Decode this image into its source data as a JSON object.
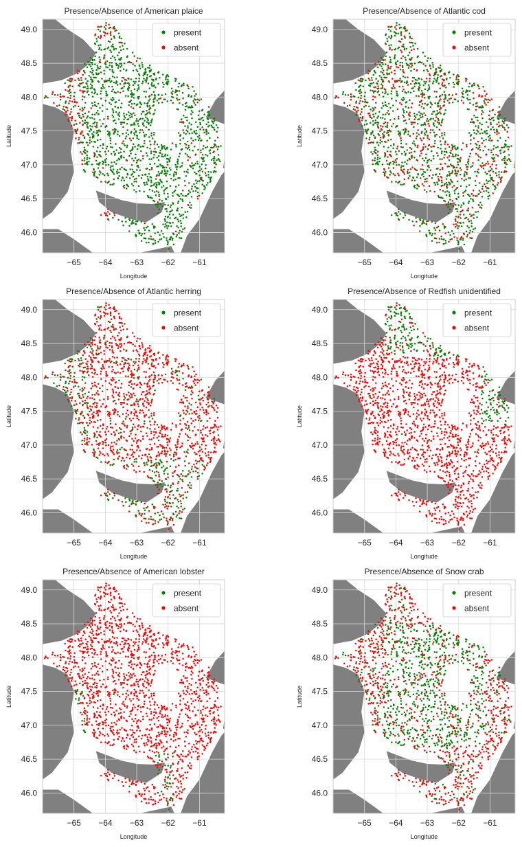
{
  "legend_labels": {
    "present": "present",
    "absent": "absent"
  },
  "colors": {
    "present": "#008000",
    "absent": "#ff0000",
    "land": "#808080",
    "water": "#ffffff",
    "grid": "#d9d9d9",
    "frame": "#cccccc"
  },
  "chart_data": [
    {
      "type": "scatter",
      "title": "Presence/Absence of American plaice",
      "xlabel": "Longitude",
      "ylabel": "Latitude",
      "xlim": [
        -66.0,
        -60.2
      ],
      "ylim": [
        45.7,
        49.15
      ],
      "xticks": [
        -65,
        -64,
        -63,
        -62,
        -61
      ],
      "yticks": [
        46.0,
        46.5,
        47.0,
        47.5,
        48.0,
        48.5,
        49.0
      ],
      "grid": true,
      "legend_position": "top-right",
      "series": [
        {
          "name": "present",
          "color": "#008000",
          "share": 0.8,
          "edge_absent": true
        },
        {
          "name": "absent",
          "color": "#ff0000",
          "share": 0.2
        }
      ]
    },
    {
      "type": "scatter",
      "title": "Presence/Absence of Atlantic cod",
      "xlabel": "Longitude",
      "ylabel": "Latitude",
      "xlim": [
        -66.0,
        -60.2
      ],
      "ylim": [
        45.7,
        49.15
      ],
      "xticks": [
        -65,
        -64,
        -63,
        -62,
        -61
      ],
      "yticks": [
        46.0,
        46.5,
        47.0,
        47.5,
        48.0,
        48.5,
        49.0
      ],
      "grid": true,
      "legend_position": "top-right",
      "series": [
        {
          "name": "present",
          "color": "#008000",
          "share": 0.68
        },
        {
          "name": "absent",
          "color": "#ff0000",
          "share": 0.32
        }
      ]
    },
    {
      "type": "scatter",
      "title": "Presence/Absence of Atlantic herring",
      "xlabel": "Longitude",
      "ylabel": "Latitude",
      "xlim": [
        -66.0,
        -60.2
      ],
      "ylim": [
        45.7,
        49.15
      ],
      "xticks": [
        -65,
        -64,
        -63,
        -62,
        -61
      ],
      "yticks": [
        46.0,
        46.5,
        47.0,
        47.5,
        48.0,
        48.5,
        49.0
      ],
      "grid": true,
      "legend_position": "top-right",
      "series": [
        {
          "name": "present",
          "color": "#008000",
          "share": 0.25,
          "south_present": true
        },
        {
          "name": "absent",
          "color": "#ff0000",
          "share": 0.75
        }
      ]
    },
    {
      "type": "scatter",
      "title": "Presence/Absence of Redfish unidentified",
      "xlabel": "Longitude",
      "ylabel": "Latitude",
      "xlim": [
        -66.0,
        -60.2
      ],
      "ylim": [
        45.7,
        49.15
      ],
      "xticks": [
        -65,
        -64,
        -63,
        -62,
        -61
      ],
      "yticks": [
        46.0,
        46.5,
        47.0,
        47.5,
        48.0,
        48.5,
        49.0
      ],
      "grid": true,
      "legend_position": "top-right",
      "series": [
        {
          "name": "present",
          "color": "#008000",
          "share": 0.08,
          "channel_present": true
        },
        {
          "name": "absent",
          "color": "#ff0000",
          "share": 0.92
        }
      ]
    },
    {
      "type": "scatter",
      "title": "Presence/Absence of American lobster",
      "xlabel": "Longitude",
      "ylabel": "Latitude",
      "xlim": [
        -66.0,
        -60.2
      ],
      "ylim": [
        45.7,
        49.15
      ],
      "xticks": [
        -65,
        -64,
        -63,
        -62,
        -61
      ],
      "yticks": [
        46.0,
        46.5,
        47.0,
        47.5,
        48.0,
        48.5,
        49.0
      ],
      "grid": true,
      "legend_position": "top-right",
      "series": [
        {
          "name": "present",
          "color": "#008000",
          "share": 0.05,
          "coast_present": true
        },
        {
          "name": "absent",
          "color": "#ff0000",
          "share": 0.95
        }
      ]
    },
    {
      "type": "scatter",
      "title": "Presence/Absence of Snow crab",
      "xlabel": "Longitude",
      "ylabel": "Latitude",
      "xlim": [
        -66.0,
        -60.2
      ],
      "ylim": [
        45.7,
        49.15
      ],
      "xticks": [
        -65,
        -64,
        -63,
        -62,
        -61
      ],
      "yticks": [
        46.0,
        46.5,
        47.0,
        47.5,
        48.0,
        48.5,
        49.0
      ],
      "grid": true,
      "legend_position": "top-right",
      "series": [
        {
          "name": "present",
          "color": "#008000",
          "share": 0.5,
          "center_present": true
        },
        {
          "name": "absent",
          "color": "#ff0000",
          "share": 0.5
        }
      ]
    }
  ]
}
